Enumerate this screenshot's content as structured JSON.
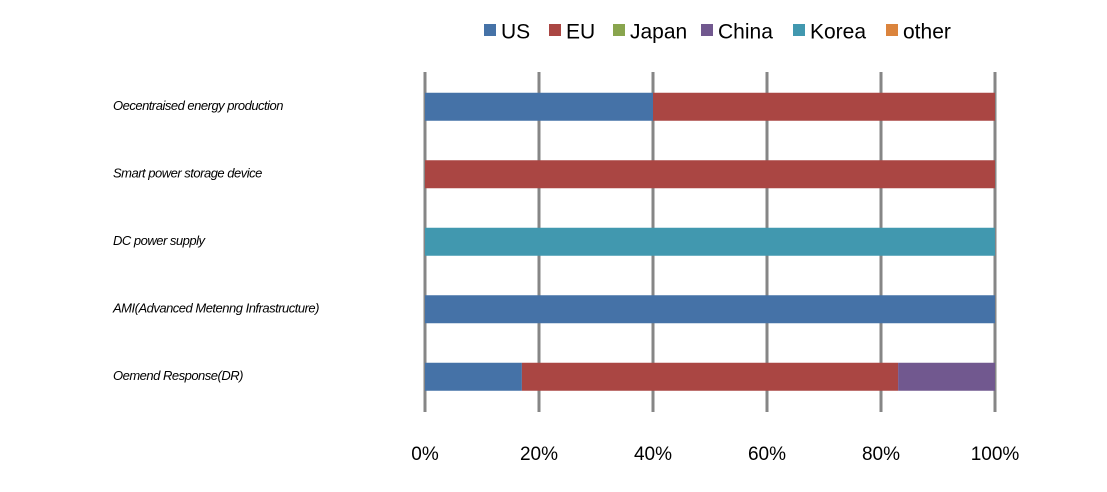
{
  "chart_data": {
    "type": "stacked-barh",
    "categories": [
      "Oecentraised energy production",
      "Smart power storage device",
      "DC power supply",
      "AMI(Advanced Metenng Infrastructure)",
      "Oemend Response(DR)"
    ],
    "series": [
      {
        "name": "US",
        "color": "#4572a7",
        "values": [
          40,
          0,
          0,
          100,
          17
        ]
      },
      {
        "name": "EU",
        "color": "#aa4643",
        "values": [
          60,
          100,
          0,
          0,
          66
        ]
      },
      {
        "name": "Japan",
        "color": "#89a54e",
        "values": [
          0,
          0,
          0,
          0,
          0
        ]
      },
      {
        "name": "China",
        "color": "#71588f",
        "values": [
          0,
          0,
          0,
          0,
          17
        ]
      },
      {
        "name": "Korea",
        "color": "#4198af",
        "values": [
          0,
          0,
          100,
          0,
          0
        ]
      },
      {
        "name": "other",
        "color": "#db843d",
        "values": [
          0,
          0,
          0,
          0,
          0
        ]
      }
    ],
    "xlim": [
      0,
      100
    ],
    "xticks": [
      {
        "value": 0,
        "label": "0%"
      },
      {
        "value": 20,
        "label": "20%"
      },
      {
        "value": 40,
        "label": "40%"
      },
      {
        "value": 60,
        "label": "60%"
      },
      {
        "value": 80,
        "label": "80%"
      },
      {
        "value": 100,
        "label": "100%"
      }
    ],
    "grid": true,
    "legend": "top"
  }
}
